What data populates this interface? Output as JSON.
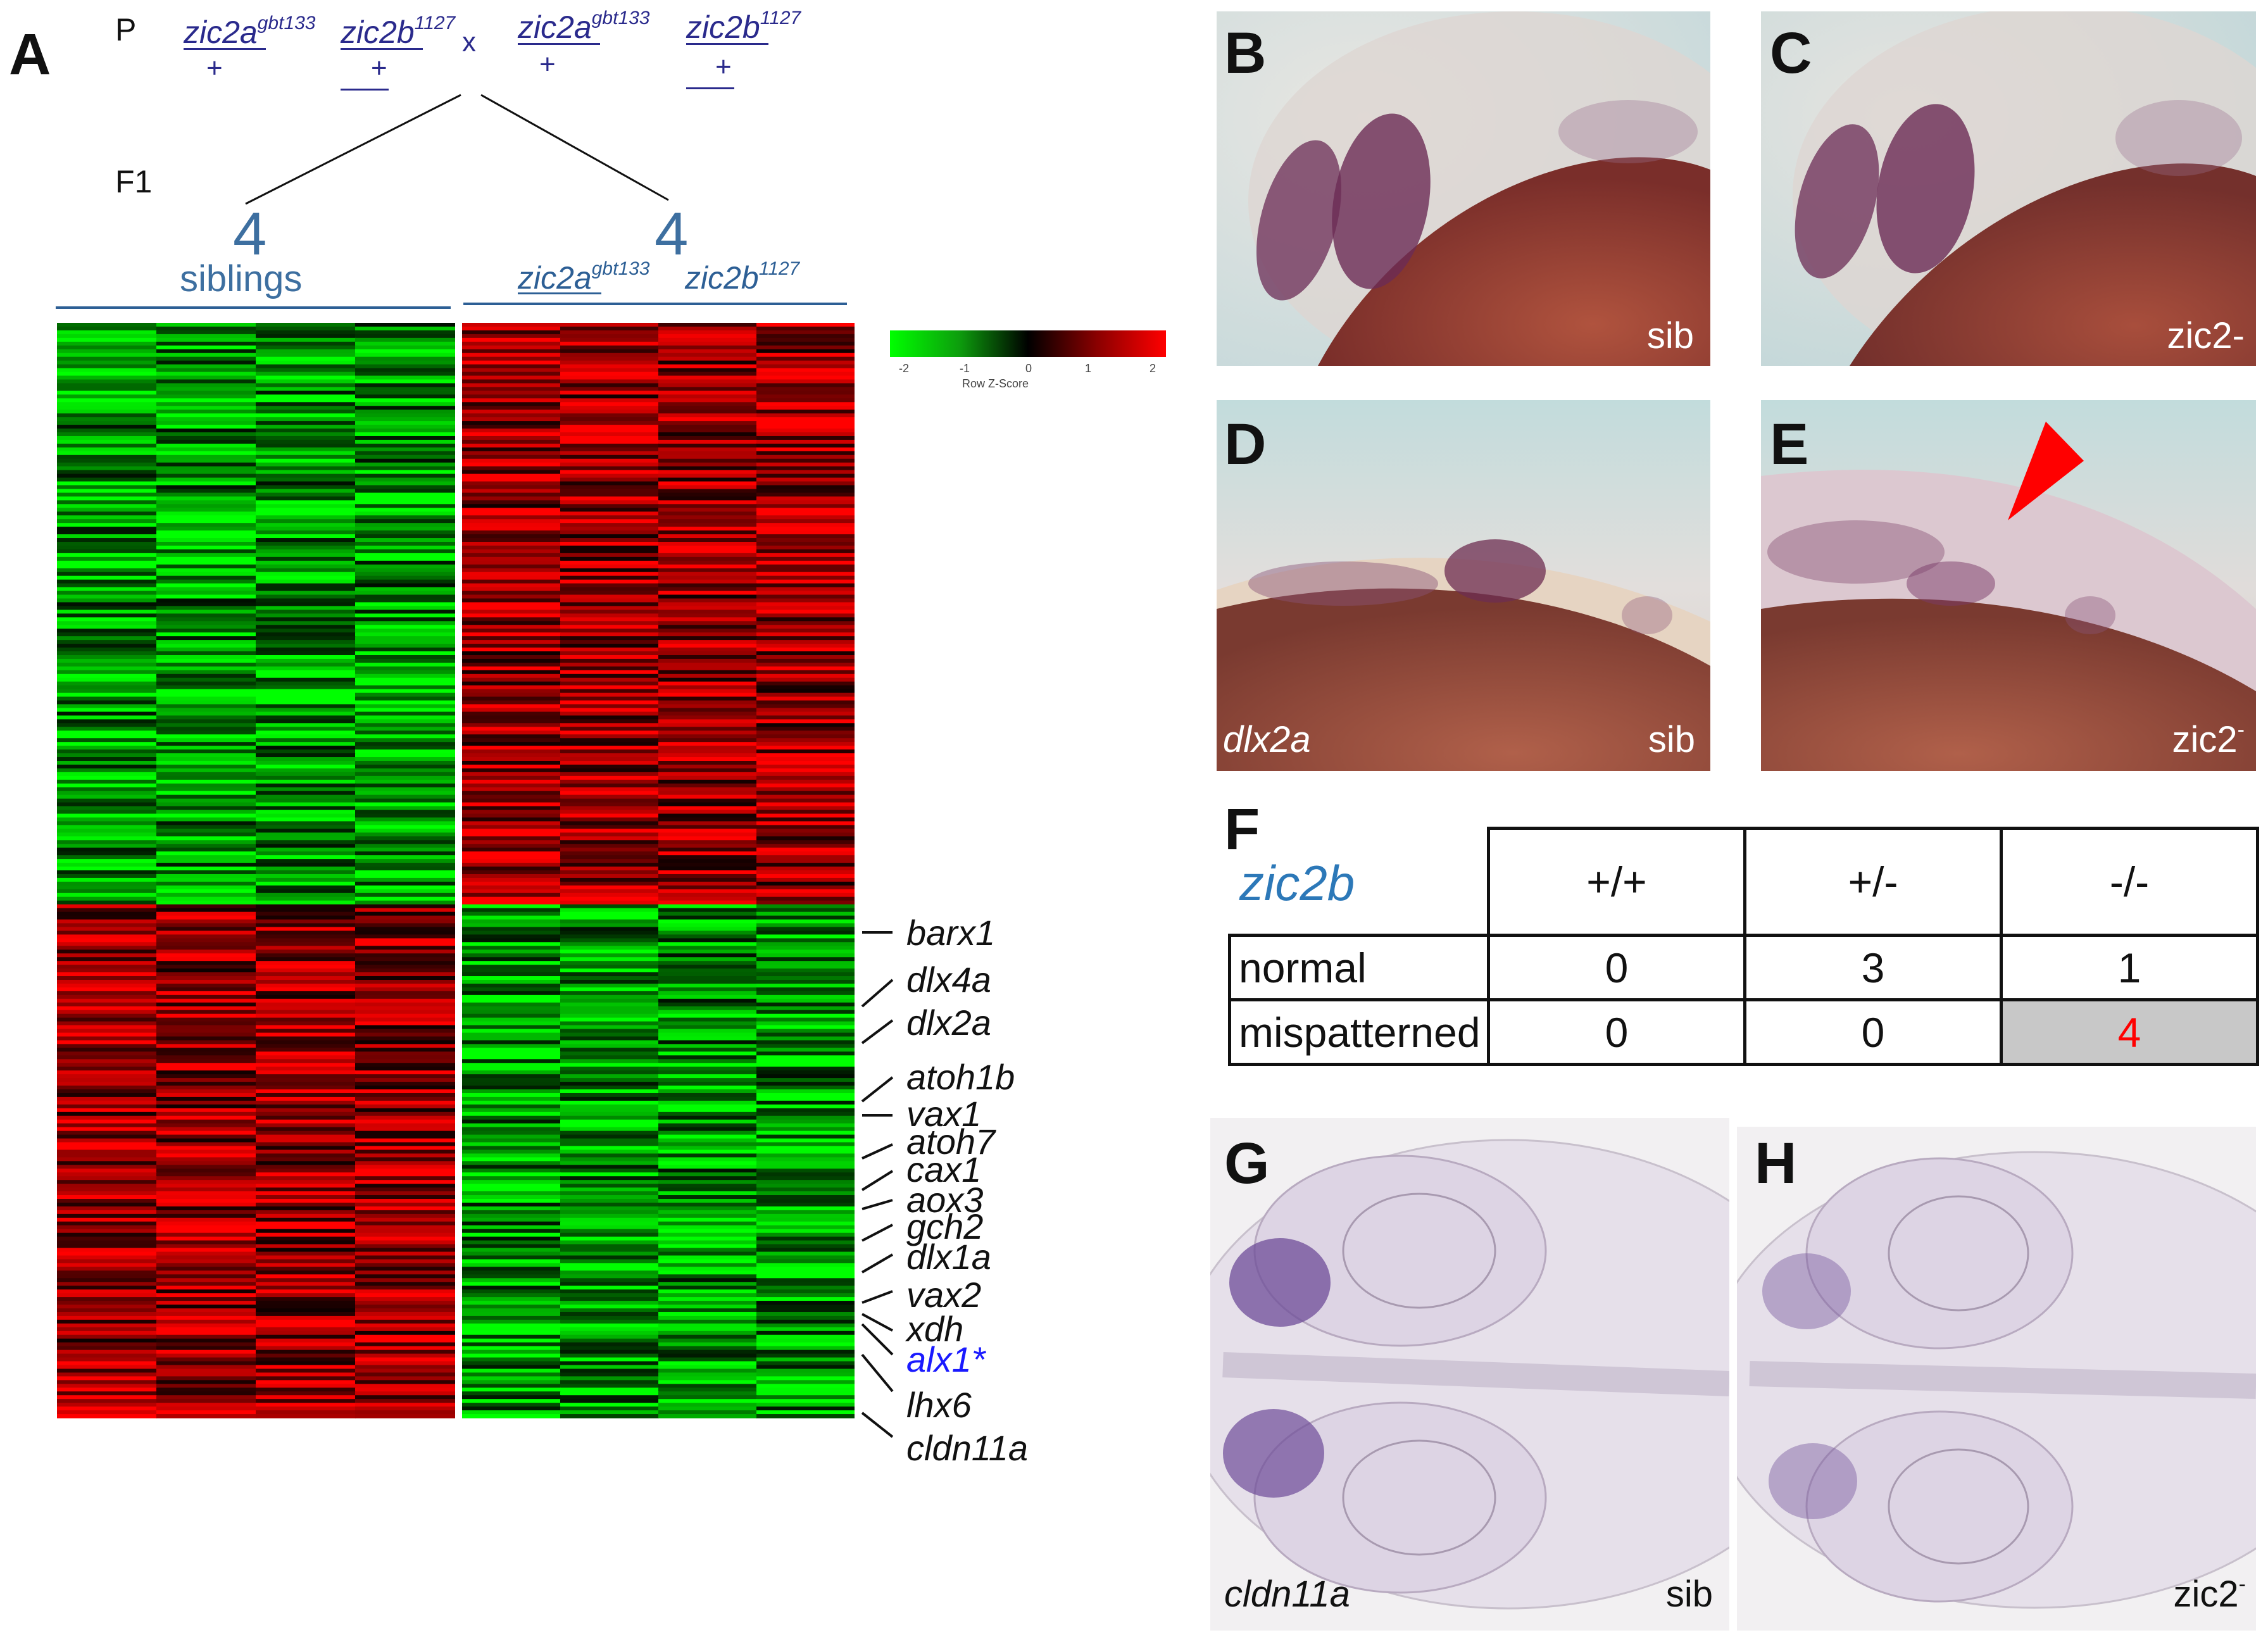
{
  "panel_labels": {
    "A": "A",
    "B": "B",
    "C": "C",
    "D": "D",
    "E": "E",
    "F": "F",
    "G": "G",
    "H": "H"
  },
  "cross": {
    "p_label": "P",
    "f1_label": "F1",
    "x_label": "x",
    "parents": [
      {
        "gene": "zic2a",
        "allele": "gbt133",
        "other": "+"
      },
      {
        "gene": "zic2b",
        "allele": "1127",
        "other": "+"
      },
      {
        "gene": "zic2a",
        "allele": "gbt133",
        "other": "+"
      },
      {
        "gene": "zic2b",
        "allele": "1127",
        "other": "+"
      }
    ],
    "group_left": {
      "count": "4",
      "label": "siblings"
    },
    "group_right": {
      "count": "4",
      "gene1": "zic2a",
      "allele1": "gbt133",
      "gene2": "zic2b",
      "allele2": "1127"
    }
  },
  "colorkey": {
    "title": "Row Z-Score",
    "ticks": [
      "-2",
      "-1",
      "0",
      "1",
      "2"
    ],
    "low_color": "#00ff00",
    "mid_color": "#000000",
    "high_color": "#ff0000"
  },
  "heatmap_genes": [
    {
      "name": "barx1",
      "color": "#111111"
    },
    {
      "name": "dlx4a",
      "color": "#111111"
    },
    {
      "name": "dlx2a",
      "color": "#111111"
    },
    {
      "name": "atoh1b",
      "color": "#111111"
    },
    {
      "name": "vax1",
      "color": "#111111"
    },
    {
      "name": "atoh7",
      "color": "#111111"
    },
    {
      "name": "cax1",
      "color": "#111111"
    },
    {
      "name": "aox3",
      "color": "#111111"
    },
    {
      "name": "gch2",
      "color": "#111111"
    },
    {
      "name": "dlx1a",
      "color": "#111111"
    },
    {
      "name": "vax2",
      "color": "#111111"
    },
    {
      "name": "xdh",
      "color": "#111111"
    },
    {
      "name": "alx1*",
      "color": "#1a1aff"
    },
    {
      "name": "lhx6",
      "color": "#111111"
    },
    {
      "name": "cldn11a",
      "color": "#111111"
    }
  ],
  "images": {
    "B": {
      "label": "sib"
    },
    "C": {
      "label": "zic2-"
    },
    "D": {
      "gene": "dlx2a",
      "label": "sib"
    },
    "E": {
      "label": "zic2",
      "label_sup": "-"
    },
    "G": {
      "gene": "cldn11a",
      "label": "sib"
    },
    "H": {
      "label": "zic2",
      "label_sup": "-"
    }
  },
  "table_f": {
    "gene": "zic2b",
    "columns": [
      "+/+",
      "+/-",
      "-/-"
    ],
    "rows": [
      {
        "label": "normal",
        "values": [
          "0",
          "3",
          "1"
        ]
      },
      {
        "label": "mispatterned",
        "values": [
          "0",
          "0",
          "4"
        ]
      }
    ],
    "highlight_color": "#c8c8c8",
    "highlight_text_color": "#ff0000"
  }
}
